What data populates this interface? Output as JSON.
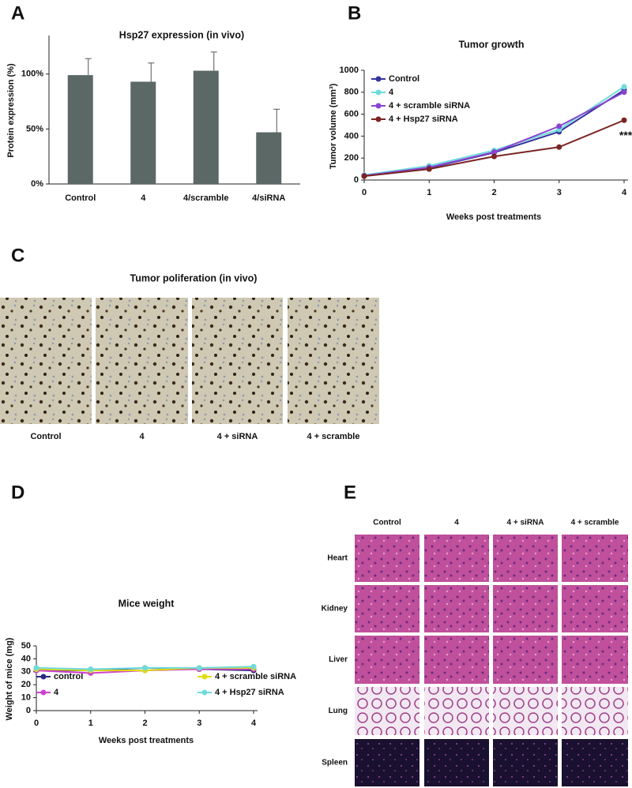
{
  "panel_labels": [
    "A",
    "B",
    "C",
    "D",
    "E"
  ],
  "chart_data": [
    {
      "type": "bar",
      "title": "Hsp27 expression (in vivo)",
      "y_label": "Protein expression (%)",
      "categories": [
        "Control",
        "4",
        "4/scramble",
        "4/siRNA"
      ],
      "values": [
        99,
        93,
        103,
        47
      ],
      "errors": [
        15,
        17,
        17,
        21
      ],
      "color": "#5b6866",
      "ylim": [
        0,
        135
      ],
      "yticks": [
        {
          "value": 0,
          "label": "0%"
        },
        {
          "value": 50,
          "label": "50%"
        },
        {
          "value": 100,
          "label": "100%"
        }
      ]
    },
    {
      "type": "line",
      "title": "Tumor growth",
      "x_label": "Weeks post treatments",
      "y_label": "Tumor volume (mm³)",
      "x": [
        0,
        1,
        2,
        3,
        4
      ],
      "xlim": [
        0,
        4
      ],
      "xticks": [
        0,
        1,
        2,
        3,
        4
      ],
      "ylim": [
        0,
        1000
      ],
      "yticks": [
        0,
        200,
        400,
        600,
        800,
        1000
      ],
      "series": [
        {
          "name": "Control",
          "color": "#34349c",
          "values": [
            40,
            110,
            250,
            440,
            820
          ]
        },
        {
          "name": "4",
          "color": "#6fdcdc",
          "values": [
            45,
            130,
            270,
            460,
            850
          ]
        },
        {
          "name": "4 + scramble siRNA",
          "color": "#8a45cf",
          "values": [
            40,
            115,
            255,
            490,
            800
          ]
        },
        {
          "name": "4 + Hsp27 siRNA",
          "color": "#7a2424",
          "values": [
            35,
            100,
            215,
            300,
            545
          ]
        }
      ],
      "annotation": "***"
    },
    {
      "type": "line",
      "title": "Mice weight",
      "x_label": "Weeks post treatments",
      "y_label": "Weight of mice (mg)",
      "x": [
        0,
        1,
        2,
        3,
        4
      ],
      "xlim": [
        0,
        4
      ],
      "xticks": [
        0,
        1,
        2,
        3,
        4
      ],
      "ylim": [
        0,
        50
      ],
      "yticks": [
        0,
        10,
        20,
        30,
        40,
        50
      ],
      "series": [
        {
          "name": "control",
          "color": "#2a2a80",
          "values": [
            31,
            31,
            33,
            32,
            31
          ]
        },
        {
          "name": "4",
          "color": "#cc44cc",
          "values": [
            31,
            29,
            31,
            32,
            32
          ]
        },
        {
          "name": "4 + scramble siRNA",
          "color": "#e0dc10",
          "values": [
            32,
            31,
            31,
            33,
            33
          ]
        },
        {
          "name": "4 + Hsp27 siRNA",
          "color": "#70dada",
          "values": [
            33,
            32,
            33,
            33,
            34
          ]
        }
      ]
    }
  ],
  "proliferation": {
    "title": "Tumor poliferation (in vivo)",
    "labels": [
      "Control",
      "4",
      "4 + siRNA",
      "4 + scramble"
    ]
  },
  "histology": {
    "columns": [
      "Control",
      "4",
      "4 + siRNA",
      "4 + scramble"
    ],
    "rows": [
      "Heart",
      "Kidney",
      "Liver",
      "Lung",
      "Spleen"
    ]
  }
}
